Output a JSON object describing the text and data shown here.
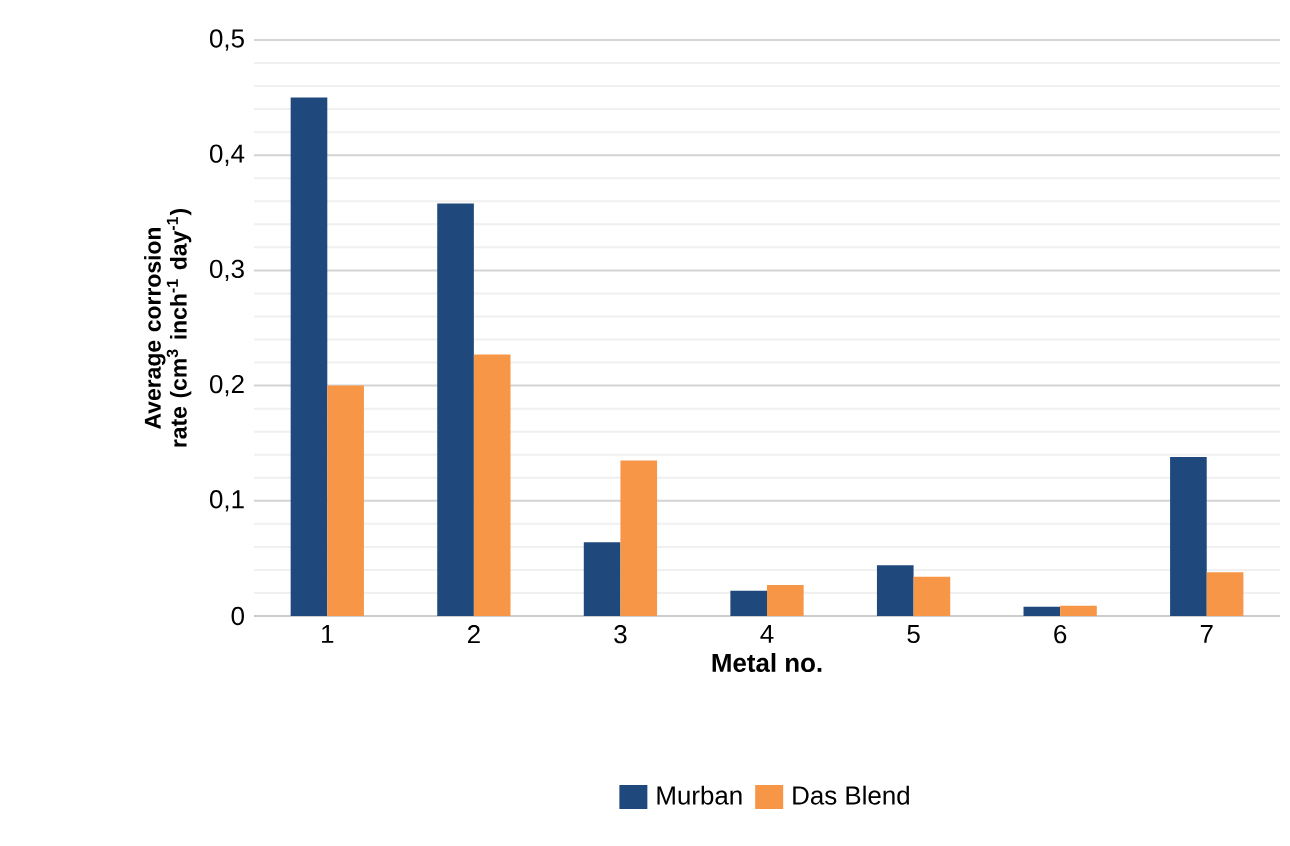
{
  "chart_data": {
    "type": "bar",
    "xlabel": "Metal no.",
    "ylabel": "Average corrosion rate (cm$^{3}$ inch$^{-1}$ day$^{-1}$)",
    "categories": [
      "1",
      "2",
      "3",
      "4",
      "5",
      "6",
      "7"
    ],
    "series": [
      {
        "name": "Murban",
        "color": "#1f497d",
        "values": [
          0.45,
          0.358,
          0.064,
          0.022,
          0.044,
          0.008,
          0.138
        ]
      },
      {
        "name": "Das Blend",
        "color": "#f79646",
        "values": [
          0.2,
          0.227,
          0.135,
          0.027,
          0.034,
          0.009,
          0.038
        ]
      }
    ],
    "ylim": [
      0,
      0.5
    ],
    "yticks": [
      {
        "value": 0,
        "label": "0"
      },
      {
        "value": 0.1,
        "label": "0,1"
      },
      {
        "value": 0.2,
        "label": "0,2"
      },
      {
        "value": 0.3,
        "label": "0,3"
      },
      {
        "value": 0.4,
        "label": "0,4"
      },
      {
        "value": 0.5,
        "label": "0,5"
      }
    ],
    "grid": "y",
    "legend": "bottom"
  }
}
